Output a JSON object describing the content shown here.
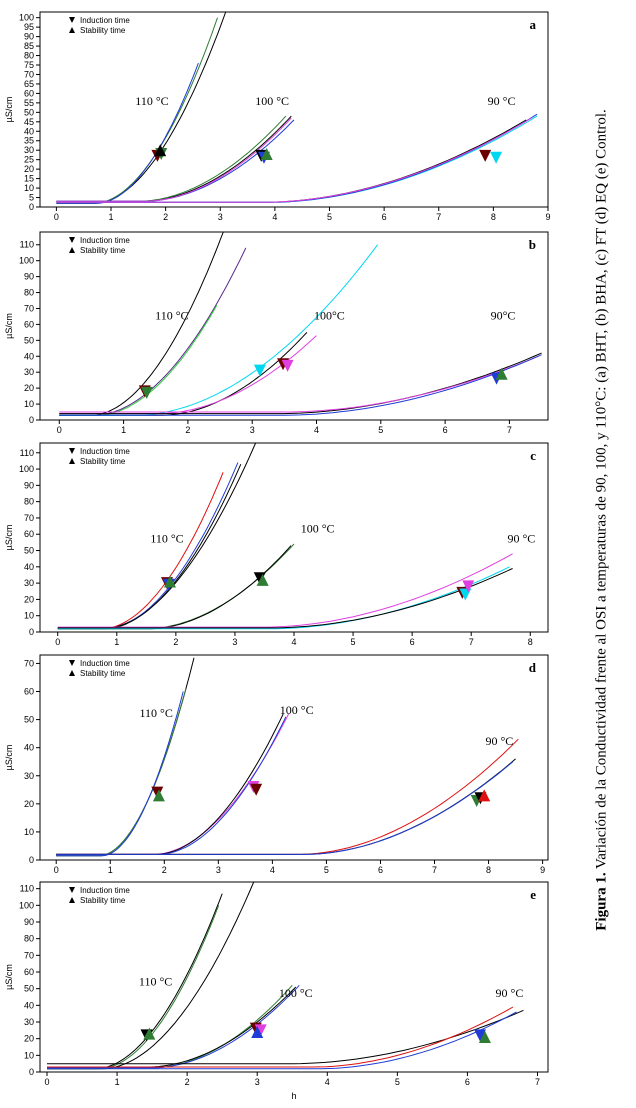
{
  "caption": {
    "label": "Figura 1.",
    "text": " Variación de la Conductividad frente al OSI a temperaturas de 90, 100, y 110°C: (a) BHT, (b) BHA, (c) FT (d) EQ (e) Control."
  },
  "chart_data": [
    {
      "type": "line",
      "panel_label": "a",
      "ylabel": "µS/cm",
      "xlabel": "",
      "xlim": [
        -0.3,
        9.0
      ],
      "ylim": [
        0,
        103
      ],
      "xticks": [
        0,
        1,
        2,
        3,
        4,
        5,
        6,
        7,
        8,
        9
      ],
      "yticks": [
        0,
        5,
        10,
        15,
        20,
        25,
        30,
        35,
        40,
        45,
        50,
        55,
        60,
        65,
        70,
        75,
        80,
        85,
        90,
        95,
        100
      ],
      "legend": {
        "position": "top-left",
        "entries": [
          "Induction time",
          "Stability time"
        ]
      },
      "temperature_labels": [
        {
          "text": "110 °C",
          "x": 1.75,
          "y": 54
        },
        {
          "text": "100 °C",
          "x": 3.95,
          "y": 54
        },
        {
          "text": "90 °C",
          "x": 8.15,
          "y": 54
        }
      ],
      "series": [
        {
          "group": "110",
          "color": "#000000",
          "base": 2,
          "onset": 0.7,
          "x_end": 3.1,
          "y_end": 103
        },
        {
          "group": "110",
          "color": "#2e7d32",
          "base": 2,
          "onset": 0.7,
          "x_end": 2.95,
          "y_end": 100
        },
        {
          "group": "110",
          "color": "#1f3cd6",
          "base": 2,
          "onset": 0.75,
          "x_end": 2.6,
          "y_end": 76
        },
        {
          "group": "100",
          "color": "#000000",
          "base": 3,
          "onset": 1.55,
          "x_end": 4.3,
          "y_end": 48
        },
        {
          "group": "100",
          "color": "#2e7d32",
          "base": 3,
          "onset": 1.5,
          "x_end": 4.2,
          "y_end": 48
        },
        {
          "group": "100",
          "color": "#1f3cd6",
          "base": 3,
          "onset": 1.6,
          "x_end": 4.35,
          "y_end": 46
        },
        {
          "group": "100",
          "color": "#e040e0",
          "base": 3,
          "onset": 1.6,
          "x_end": 4.3,
          "y_end": 47
        },
        {
          "group": "90",
          "color": "#000000",
          "base": 2.5,
          "onset": 3.8,
          "x_end": 8.6,
          "y_end": 46
        },
        {
          "group": "90",
          "color": "#00d8f0",
          "base": 2.5,
          "onset": 3.9,
          "x_end": 8.8,
          "y_end": 48
        },
        {
          "group": "90",
          "color": "#1f3cd6",
          "base": 2.5,
          "onset": 3.9,
          "x_end": 8.8,
          "y_end": 49
        },
        {
          "group": "90",
          "color": "#e040e0",
          "base": 2.5,
          "onset": 3.8,
          "x_end": 8.7,
          "y_end": 47
        }
      ],
      "markers": [
        {
          "x": 1.85,
          "y": 27,
          "shape": "down",
          "color": "#6b0000"
        },
        {
          "x": 1.92,
          "y": 28,
          "shape": "down",
          "color": "#2e7d32"
        },
        {
          "x": 1.9,
          "y": 30,
          "shape": "up",
          "color": "#000000"
        },
        {
          "x": 3.75,
          "y": 27,
          "shape": "down",
          "color": "#000000"
        },
        {
          "x": 3.8,
          "y": 26,
          "shape": "down",
          "color": "#1f3cd6"
        },
        {
          "x": 3.85,
          "y": 28,
          "shape": "up",
          "color": "#2e7d32"
        },
        {
          "x": 7.85,
          "y": 27,
          "shape": "down",
          "color": "#6b0000"
        },
        {
          "x": 8.05,
          "y": 26,
          "shape": "down",
          "color": "#00d8f0"
        }
      ]
    },
    {
      "type": "line",
      "panel_label": "b",
      "ylabel": "µS/cm",
      "xlabel": "",
      "xlim": [
        -0.3,
        7.6
      ],
      "ylim": [
        0,
        118
      ],
      "xticks": [
        0,
        1,
        2,
        3,
        4,
        5,
        6,
        7
      ],
      "yticks": [
        0,
        10,
        20,
        30,
        40,
        50,
        60,
        70,
        80,
        90,
        100,
        110
      ],
      "legend": {
        "position": "top-left",
        "entries": [
          "Induction time",
          "Stability time"
        ]
      },
      "temperature_labels": [
        {
          "text": "110 °C",
          "x": 1.75,
          "y": 63
        },
        {
          "text": "100°C",
          "x": 4.2,
          "y": 63
        },
        {
          "text": "90°C",
          "x": 6.9,
          "y": 63
        }
      ],
      "series": [
        {
          "group": "110",
          "color": "#000000",
          "base": 3,
          "onset": 0.5,
          "x_end": 2.55,
          "y_end": 118
        },
        {
          "group": "110",
          "color": "#5a2a8a",
          "base": 3,
          "onset": 0.55,
          "x_end": 2.9,
          "y_end": 108
        },
        {
          "group": "110",
          "color": "#2ecc40",
          "base": 3,
          "onset": 0.6,
          "x_end": 2.45,
          "y_end": 72
        },
        {
          "group": "100",
          "color": "#000000",
          "base": 3,
          "onset": 1.6,
          "x_end": 3.85,
          "y_end": 55
        },
        {
          "group": "100",
          "color": "#00d8f0",
          "base": 3,
          "onset": 1.2,
          "x_end": 4.95,
          "y_end": 110
        },
        {
          "group": "100",
          "color": "#e040e0",
          "base": 4,
          "onset": 1.55,
          "x_end": 4.0,
          "y_end": 53
        },
        {
          "group": "90",
          "color": "#000000",
          "base": 4,
          "onset": 3.4,
          "x_end": 7.5,
          "y_end": 42
        },
        {
          "group": "90",
          "color": "#e040e0",
          "base": 5,
          "onset": 3.5,
          "x_end": 7.45,
          "y_end": 40
        },
        {
          "group": "90",
          "color": "#1f3cd6",
          "base": 3,
          "onset": 3.5,
          "x_end": 7.5,
          "y_end": 41
        }
      ],
      "markers": [
        {
          "x": 1.33,
          "y": 18,
          "shape": "down",
          "color": "#6b0000"
        },
        {
          "x": 1.36,
          "y": 17,
          "shape": "down",
          "color": "#2e7d32"
        },
        {
          "x": 3.12,
          "y": 31,
          "shape": "down",
          "color": "#00d8f0"
        },
        {
          "x": 3.48,
          "y": 35,
          "shape": "down",
          "color": "#6b0000"
        },
        {
          "x": 3.55,
          "y": 34,
          "shape": "down",
          "color": "#e040e0"
        },
        {
          "x": 6.8,
          "y": 26,
          "shape": "down",
          "color": "#1f3cd6"
        },
        {
          "x": 6.88,
          "y": 29,
          "shape": "up",
          "color": "#2e7d32"
        }
      ]
    },
    {
      "type": "line",
      "panel_label": "c",
      "ylabel": "µS/cm",
      "xlabel": "",
      "xlim": [
        -0.3,
        8.3
      ],
      "ylim": [
        0,
        116
      ],
      "xticks": [
        0,
        1,
        2,
        3,
        4,
        5,
        6,
        7,
        8
      ],
      "yticks": [
        0,
        10,
        20,
        30,
        40,
        50,
        60,
        70,
        80,
        90,
        100,
        110
      ],
      "legend": {
        "position": "top-left",
        "entries": [
          "Induction time",
          "Stability time"
        ]
      },
      "temperature_labels": [
        {
          "text": "110 °C",
          "x": 1.85,
          "y": 55
        },
        {
          "text": "100 °C",
          "x": 4.4,
          "y": 61
        },
        {
          "text": "90 °C",
          "x": 7.85,
          "y": 55
        }
      ],
      "series": [
        {
          "group": "110",
          "color": "#e01010",
          "base": 2,
          "onset": 0.75,
          "x_end": 2.8,
          "y_end": 98
        },
        {
          "group": "110",
          "color": "#000000",
          "base": 2,
          "onset": 0.75,
          "x_end": 3.35,
          "y_end": 116
        },
        {
          "group": "110",
          "color": "#1f3cd6",
          "base": 2,
          "onset": 0.8,
          "x_end": 3.05,
          "y_end": 104
        },
        {
          "group": "110",
          "color": "#000000",
          "base": 2,
          "onset": 0.8,
          "x_end": 3.1,
          "y_end": 103
        },
        {
          "group": "100",
          "color": "#2e7d32",
          "base": 2,
          "onset": 1.5,
          "x_end": 4.0,
          "y_end": 54
        },
        {
          "group": "100",
          "color": "#000000",
          "base": 2,
          "onset": 1.55,
          "x_end": 3.95,
          "y_end": 53
        },
        {
          "group": "90",
          "color": "#e040e0",
          "base": 3,
          "onset": 3.5,
          "x_end": 7.7,
          "y_end": 48
        },
        {
          "group": "90",
          "color": "#00d8f0",
          "base": 2,
          "onset": 3.6,
          "x_end": 7.65,
          "y_end": 40
        },
        {
          "group": "90",
          "color": "#000000",
          "base": 2.5,
          "onset": 3.6,
          "x_end": 7.7,
          "y_end": 39
        }
      ],
      "markers": [
        {
          "x": 1.85,
          "y": 30,
          "shape": "down",
          "color": "#6b0000"
        },
        {
          "x": 1.88,
          "y": 29,
          "shape": "down",
          "color": "#1f3cd6"
        },
        {
          "x": 1.9,
          "y": 31,
          "shape": "up",
          "color": "#2e7d32"
        },
        {
          "x": 3.42,
          "y": 33,
          "shape": "down",
          "color": "#000000"
        },
        {
          "x": 3.47,
          "y": 32,
          "shape": "up",
          "color": "#2e7d32"
        },
        {
          "x": 6.85,
          "y": 24,
          "shape": "down",
          "color": "#6b0000"
        },
        {
          "x": 6.9,
          "y": 23,
          "shape": "down",
          "color": "#00d8f0"
        },
        {
          "x": 6.95,
          "y": 28,
          "shape": "down",
          "color": "#e040e0"
        }
      ]
    },
    {
      "type": "line",
      "panel_label": "d",
      "ylabel": "µS/cm",
      "xlabel": "",
      "xlim": [
        -0.3,
        9.1
      ],
      "ylim": [
        0,
        73
      ],
      "xticks": [
        0,
        1,
        2,
        3,
        4,
        5,
        6,
        7,
        8,
        9
      ],
      "yticks": [
        0,
        10,
        20,
        30,
        40,
        50,
        60,
        70
      ],
      "legend": {
        "position": "top-left",
        "entries": [
          "Induction time",
          "Stability time"
        ]
      },
      "temperature_labels": [
        {
          "text": "110 °C",
          "x": 1.85,
          "y": 51
        },
        {
          "text": "100 °C",
          "x": 4.45,
          "y": 52
        },
        {
          "text": "90 °C",
          "x": 8.2,
          "y": 41
        }
      ],
      "series": [
        {
          "group": "110",
          "color": "#000000",
          "base": 1.5,
          "onset": 0.8,
          "x_end": 2.55,
          "y_end": 72
        },
        {
          "group": "110",
          "color": "#2e7d32",
          "base": 1.5,
          "onset": 0.8,
          "x_end": 2.4,
          "y_end": 61
        },
        {
          "group": "110",
          "color": "#1f3cd6",
          "base": 1.5,
          "onset": 0.85,
          "x_end": 2.35,
          "y_end": 60
        },
        {
          "group": "100",
          "color": "#e040e0",
          "base": 2,
          "onset": 1.8,
          "x_end": 4.3,
          "y_end": 52
        },
        {
          "group": "100",
          "color": "#000000",
          "base": 2,
          "onset": 1.85,
          "x_end": 4.2,
          "y_end": 52
        },
        {
          "group": "100",
          "color": "#1f3cd6",
          "base": 2,
          "onset": 1.9,
          "x_end": 4.25,
          "y_end": 51
        },
        {
          "group": "90",
          "color": "#e01010",
          "base": 2,
          "onset": 4.5,
          "x_end": 8.55,
          "y_end": 43
        },
        {
          "group": "90",
          "color": "#000000",
          "base": 2,
          "onset": 4.6,
          "x_end": 8.5,
          "y_end": 36
        },
        {
          "group": "90",
          "color": "#1f3cd6",
          "base": 2,
          "onset": 4.6,
          "x_end": 8.45,
          "y_end": 35
        }
      ],
      "markers": [
        {
          "x": 1.87,
          "y": 24,
          "shape": "down",
          "color": "#6b0000"
        },
        {
          "x": 1.9,
          "y": 23,
          "shape": "up",
          "color": "#2e7d32"
        },
        {
          "x": 3.65,
          "y": 26,
          "shape": "down",
          "color": "#e040e0"
        },
        {
          "x": 3.7,
          "y": 25,
          "shape": "down",
          "color": "#6b0000"
        },
        {
          "x": 7.78,
          "y": 21,
          "shape": "down",
          "color": "#2e7d32"
        },
        {
          "x": 7.85,
          "y": 22,
          "shape": "down",
          "color": "#000000"
        },
        {
          "x": 7.92,
          "y": 23,
          "shape": "up",
          "color": "#e01010"
        }
      ]
    },
    {
      "type": "line",
      "panel_label": "e",
      "ylabel": "µS/cm",
      "xlabel": "h",
      "xlim": [
        -0.1,
        7.15
      ],
      "ylim": [
        0,
        114
      ],
      "xticks": [
        0,
        1,
        2,
        3,
        4,
        5,
        6,
        7
      ],
      "yticks": [
        0,
        10,
        20,
        30,
        40,
        50,
        60,
        70,
        80,
        90,
        100,
        110
      ],
      "legend": {
        "position": "top-left",
        "entries": [
          "Induction time",
          "Stability time"
        ]
      },
      "temperature_labels": [
        {
          "text": "110 °C",
          "x": 1.55,
          "y": 52
        },
        {
          "text": "100 °C",
          "x": 3.55,
          "y": 45
        },
        {
          "text": "90 °C",
          "x": 6.6,
          "y": 45
        }
      ],
      "series": [
        {
          "group": "110",
          "color": "#000000",
          "base": 2,
          "onset": 0.7,
          "x_end": 2.5,
          "y_end": 107
        },
        {
          "group": "110",
          "color": "#000000",
          "base": 2,
          "onset": 0.8,
          "x_end": 2.95,
          "y_end": 114
        },
        {
          "group": "110",
          "color": "#2e7d32",
          "base": 2,
          "onset": 0.75,
          "x_end": 2.45,
          "y_end": 100
        },
        {
          "group": "100",
          "color": "#2e7d32",
          "base": 2.5,
          "onset": 1.5,
          "x_end": 3.5,
          "y_end": 52
        },
        {
          "group": "100",
          "color": "#1f3cd6",
          "base": 2.5,
          "onset": 1.5,
          "x_end": 3.6,
          "y_end": 52
        },
        {
          "group": "100",
          "color": "#000000",
          "base": 3,
          "onset": 1.45,
          "x_end": 3.55,
          "y_end": 51
        },
        {
          "group": "90",
          "color": "#000000",
          "base": 5,
          "onset": 3.5,
          "x_end": 6.8,
          "y_end": 37
        },
        {
          "group": "90",
          "color": "#e01010",
          "base": 3,
          "onset": 3.8,
          "x_end": 6.65,
          "y_end": 39
        },
        {
          "group": "90",
          "color": "#1f3cd6",
          "base": 2,
          "onset": 3.9,
          "x_end": 6.7,
          "y_end": 36
        }
      ],
      "markers": [
        {
          "x": 1.42,
          "y": 22,
          "shape": "down",
          "color": "#000000"
        },
        {
          "x": 1.46,
          "y": 23,
          "shape": "up",
          "color": "#2e7d32"
        },
        {
          "x": 2.98,
          "y": 26,
          "shape": "down",
          "color": "#6b0000"
        },
        {
          "x": 3.05,
          "y": 25,
          "shape": "down",
          "color": "#e040e0"
        },
        {
          "x": 3.0,
          "y": 24,
          "shape": "up",
          "color": "#1f3cd6"
        },
        {
          "x": 6.18,
          "y": 22,
          "shape": "down",
          "color": "#1f3cd6"
        },
        {
          "x": 6.25,
          "y": 21,
          "shape": "up",
          "color": "#2e7d32"
        }
      ]
    }
  ]
}
